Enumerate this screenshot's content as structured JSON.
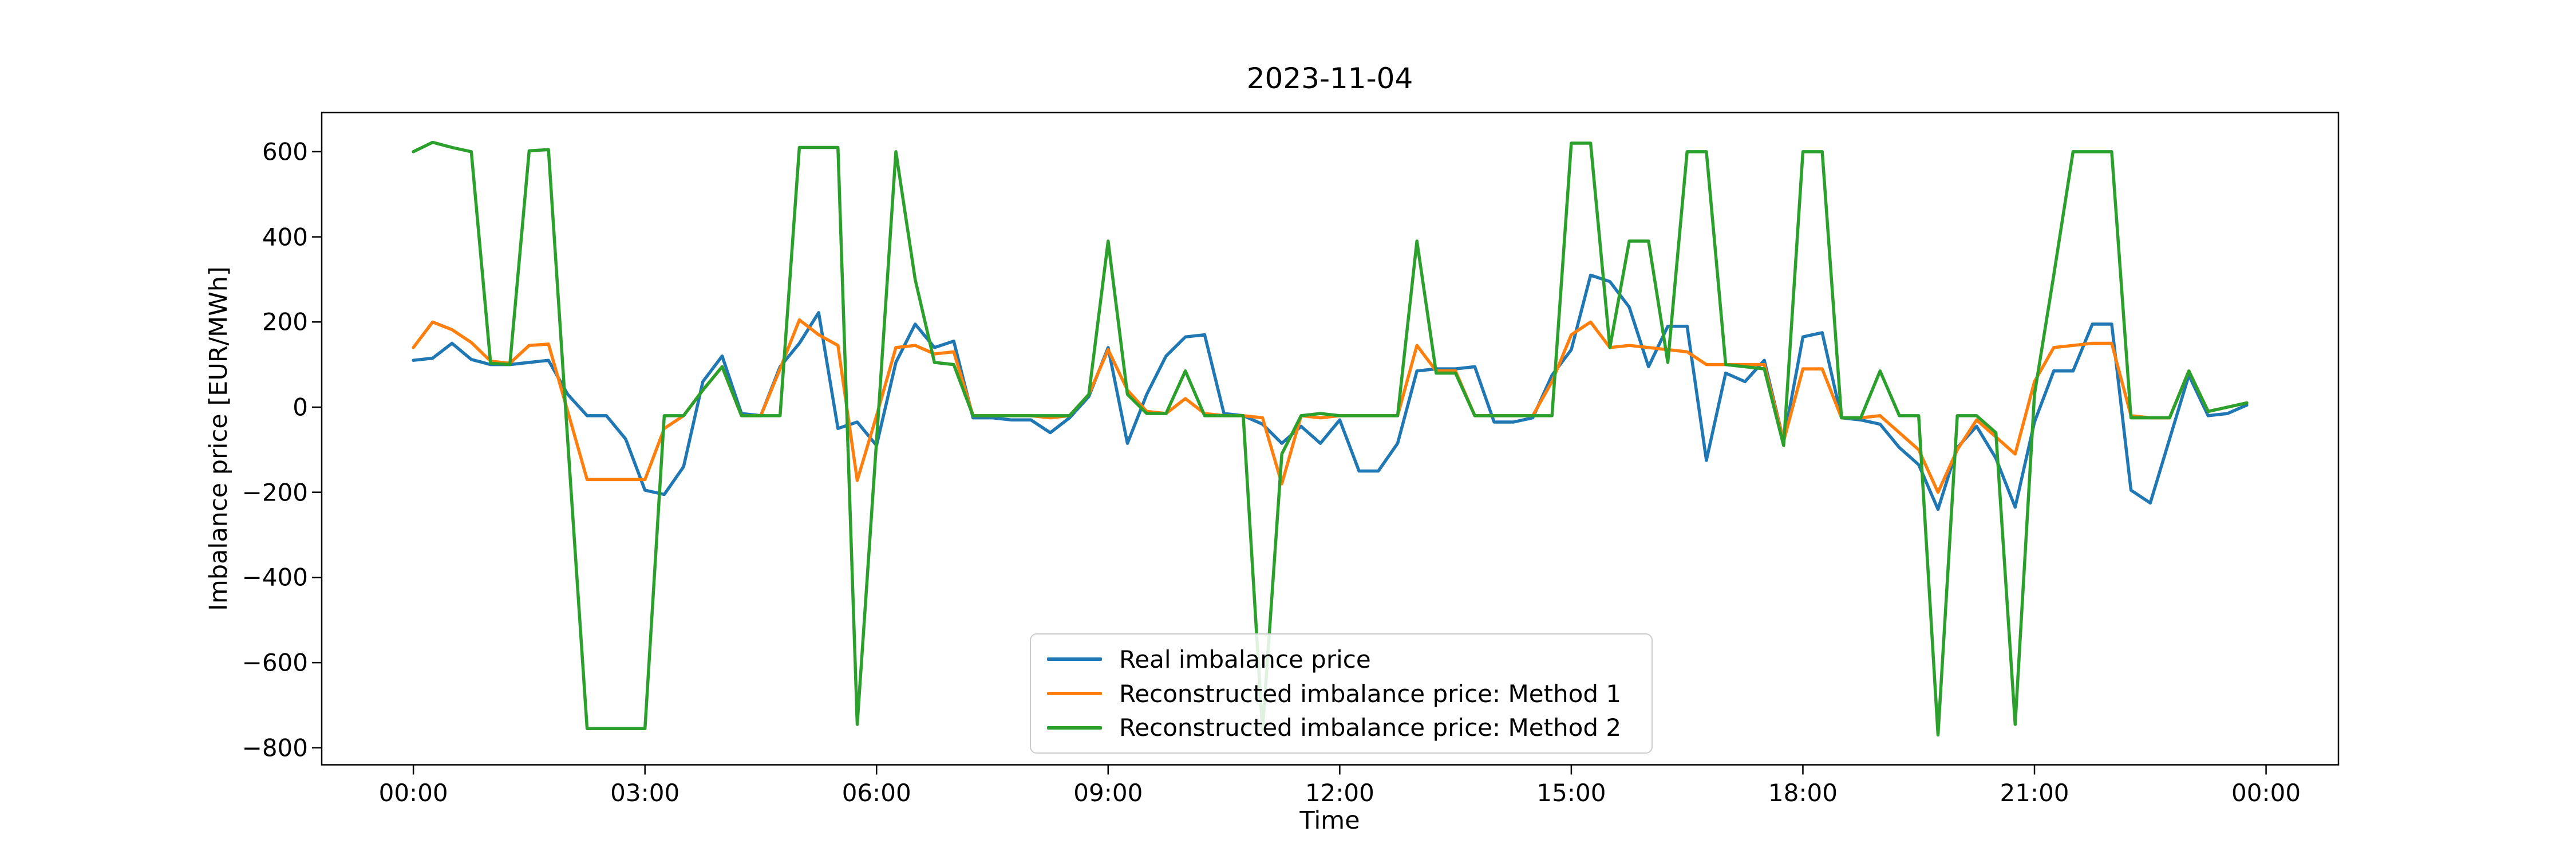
{
  "title": "2023-11-04",
  "axes": {
    "x_label": "Time",
    "y_label": "Imbalance price [EUR/MWh]"
  },
  "chart_data": {
    "type": "line",
    "title": "2023-11-04",
    "xlabel": "Time",
    "ylabel": "Imbalance price [EUR/MWh]",
    "grid": false,
    "legend_position": "lower center",
    "start_time": "00:00",
    "step_minutes": 15,
    "n_points": 96,
    "x_ticks": [
      {
        "label": "00:00",
        "hour": 0
      },
      {
        "label": "03:00",
        "hour": 3
      },
      {
        "label": "06:00",
        "hour": 6
      },
      {
        "label": "09:00",
        "hour": 9
      },
      {
        "label": "12:00",
        "hour": 12
      },
      {
        "label": "15:00",
        "hour": 15
      },
      {
        "label": "18:00",
        "hour": 18
      },
      {
        "label": "21:00",
        "hour": 21
      },
      {
        "label": "00:00",
        "hour": 24
      }
    ],
    "y_ticks": [
      {
        "label": "600",
        "value": 600
      },
      {
        "label": "400",
        "value": 400
      },
      {
        "label": "200",
        "value": 200
      },
      {
        "label": "0",
        "value": 0
      },
      {
        "label": "−200",
        "value": -200
      },
      {
        "label": "−400",
        "value": -400
      },
      {
        "label": "−600",
        "value": -600
      },
      {
        "label": "−800",
        "value": -800
      }
    ],
    "xlim_hours": [
      -1.1875,
      24.9375
    ],
    "ylim": [
      -840,
      692
    ],
    "series": [
      {
        "name": "Real imbalance price",
        "color": "#1f77b4",
        "values": [
          110,
          115,
          150,
          112,
          100,
          100,
          105,
          110,
          30,
          -20,
          -20,
          -75,
          -195,
          -205,
          -140,
          60,
          120,
          -15,
          -20,
          95,
          150,
          222,
          -50,
          -35,
          -90,
          105,
          195,
          140,
          155,
          -25,
          -25,
          -30,
          -30,
          -60,
          -25,
          25,
          140,
          -85,
          30,
          120,
          165,
          170,
          -15,
          -20,
          -40,
          -85,
          -45,
          -85,
          -30,
          -150,
          -150,
          -85,
          85,
          90,
          90,
          95,
          -35,
          -35,
          -25,
          75,
          135,
          310,
          295,
          235,
          95,
          190,
          190,
          -125,
          80,
          60,
          110,
          -80,
          165,
          175,
          -25,
          -30,
          -40,
          -95,
          -135,
          -240,
          -95,
          -45,
          -120,
          -235,
          -35,
          85,
          85,
          195,
          195,
          -195,
          -225,
          -75,
          75,
          -20,
          -15,
          5
        ]
      },
      {
        "name": "Reconstructed imbalance price: Method 1",
        "color": "#ff7f0e",
        "values": [
          140,
          200,
          182,
          152,
          108,
          103,
          145,
          148,
          -10,
          -170,
          -170,
          -170,
          -170,
          -50,
          -20,
          40,
          95,
          -20,
          -20,
          90,
          205,
          170,
          145,
          -172,
          -20,
          140,
          145,
          125,
          130,
          -20,
          -20,
          -20,
          -20,
          -25,
          -20,
          30,
          135,
          40,
          -10,
          -15,
          20,
          -15,
          -20,
          -20,
          -25,
          -180,
          -20,
          -25,
          -20,
          -20,
          -20,
          -20,
          145,
          85,
          85,
          -20,
          -20,
          -20,
          -20,
          60,
          170,
          200,
          140,
          145,
          140,
          135,
          130,
          100,
          100,
          100,
          100,
          -80,
          90,
          90,
          -25,
          -25,
          -20,
          -60,
          -100,
          -200,
          -100,
          -30,
          -70,
          -110,
          60,
          140,
          145,
          150,
          150,
          -20,
          -25,
          -25,
          85,
          -10,
          0,
          10
        ]
      },
      {
        "name": "Reconstructed imbalance price: Method 2",
        "color": "#2ca02c",
        "values": [
          600,
          622,
          610,
          600,
          103,
          100,
          602,
          605,
          -80,
          -755,
          -755,
          -755,
          -755,
          -20,
          -20,
          40,
          95,
          -20,
          -20,
          -20,
          610,
          610,
          610,
          -745,
          -80,
          600,
          300,
          105,
          100,
          -20,
          -20,
          -20,
          -20,
          -20,
          -20,
          30,
          390,
          30,
          -15,
          -15,
          85,
          -20,
          -20,
          -20,
          -760,
          -110,
          -20,
          -15,
          -20,
          -20,
          -20,
          -20,
          390,
          80,
          80,
          -20,
          -20,
          -20,
          -20,
          -20,
          620,
          620,
          140,
          390,
          390,
          105,
          600,
          600,
          100,
          95,
          90,
          -90,
          600,
          600,
          -25,
          -25,
          85,
          -20,
          -20,
          -770,
          -20,
          -20,
          -60,
          -745,
          30,
          310,
          600,
          600,
          600,
          -25,
          -25,
          -25,
          85,
          -10,
          0,
          10
        ]
      }
    ]
  },
  "layout_colors": {
    "spine": "#000000",
    "legend_border": "#cccccc",
    "background": "#ffffff"
  }
}
